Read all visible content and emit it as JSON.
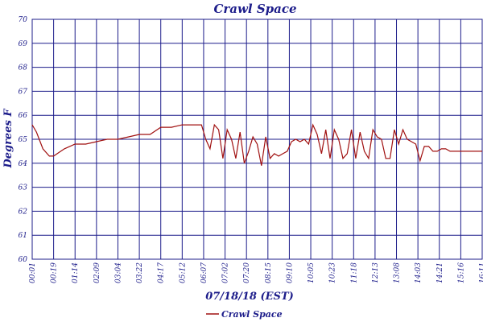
{
  "chart_data": {
    "type": "line",
    "title": "Crawl Space",
    "xlabel": "07/18/18 (EST)",
    "ylabel": "Degrees F",
    "ylim": [
      60,
      70
    ],
    "y_ticks": [
      "60",
      "61",
      "62",
      "63",
      "64",
      "65",
      "66",
      "67",
      "68",
      "69",
      "70"
    ],
    "x_ticks": [
      "00:01",
      "00:19",
      "01:14",
      "02:09",
      "03:04",
      "03:22",
      "04:17",
      "05:12",
      "06:07",
      "07:02",
      "07:20",
      "08:15",
      "09:10",
      "10:05",
      "10:23",
      "11:18",
      "12:13",
      "13:08",
      "14:03",
      "14:21",
      "15:16",
      "16:11"
    ],
    "grid": true,
    "legend_position": "bottom",
    "series": [
      {
        "name": "Crawl Space",
        "color": "#a01010",
        "x": [
          0,
          0.2,
          0.5,
          0.8,
          1,
          1.5,
          2,
          2.5,
          3,
          3.5,
          4,
          4.5,
          5,
          5.5,
          6,
          6.5,
          7,
          7.3,
          7.6,
          7.9,
          8.1,
          8.3,
          8.5,
          8.7,
          8.9,
          9.1,
          9.3,
          9.5,
          9.7,
          9.9,
          10.1,
          10.3,
          10.5,
          10.7,
          10.9,
          11.1,
          11.3,
          11.5,
          11.7,
          11.9,
          12.1,
          12.3,
          12.5,
          12.7,
          12.9,
          13.1,
          13.3,
          13.5,
          13.7,
          13.9,
          14.1,
          14.3,
          14.5,
          14.7,
          14.9,
          15.1,
          15.3,
          15.5,
          15.7,
          15.9,
          16.1,
          16.3,
          16.5,
          16.7,
          16.9,
          17.1,
          17.3,
          17.5,
          17.7,
          17.9,
          18.1,
          18.3,
          18.5,
          18.7,
          18.9,
          19.1,
          19.3,
          19.5,
          19.7,
          19.9,
          20.1,
          20.3,
          20.5,
          20.7,
          20.9,
          21
        ],
        "values": [
          65.6,
          65.3,
          64.6,
          64.3,
          64.3,
          64.6,
          64.8,
          64.8,
          64.9,
          65.0,
          65.0,
          65.1,
          65.2,
          65.2,
          65.5,
          65.5,
          65.6,
          65.6,
          65.6,
          65.6,
          65.0,
          64.6,
          65.6,
          65.4,
          64.2,
          65.4,
          65.0,
          64.2,
          65.3,
          64.0,
          64.5,
          65.1,
          64.8,
          63.9,
          65.1,
          64.2,
          64.4,
          64.3,
          64.4,
          64.5,
          64.9,
          65.0,
          64.9,
          65.0,
          64.8,
          65.6,
          65.2,
          64.4,
          65.4,
          64.2,
          65.4,
          65.0,
          64.2,
          64.4,
          65.4,
          64.2,
          65.3,
          64.5,
          64.2,
          65.4,
          65.1,
          65.0,
          64.2,
          64.2,
          65.4,
          64.8,
          65.4,
          65.0,
          64.9,
          64.8,
          64.1,
          64.7,
          64.7,
          64.5,
          64.5,
          64.6,
          64.6,
          64.5,
          64.5,
          64.5,
          64.5,
          64.5,
          64.5,
          64.5,
          64.5,
          64.5
        ]
      }
    ]
  }
}
